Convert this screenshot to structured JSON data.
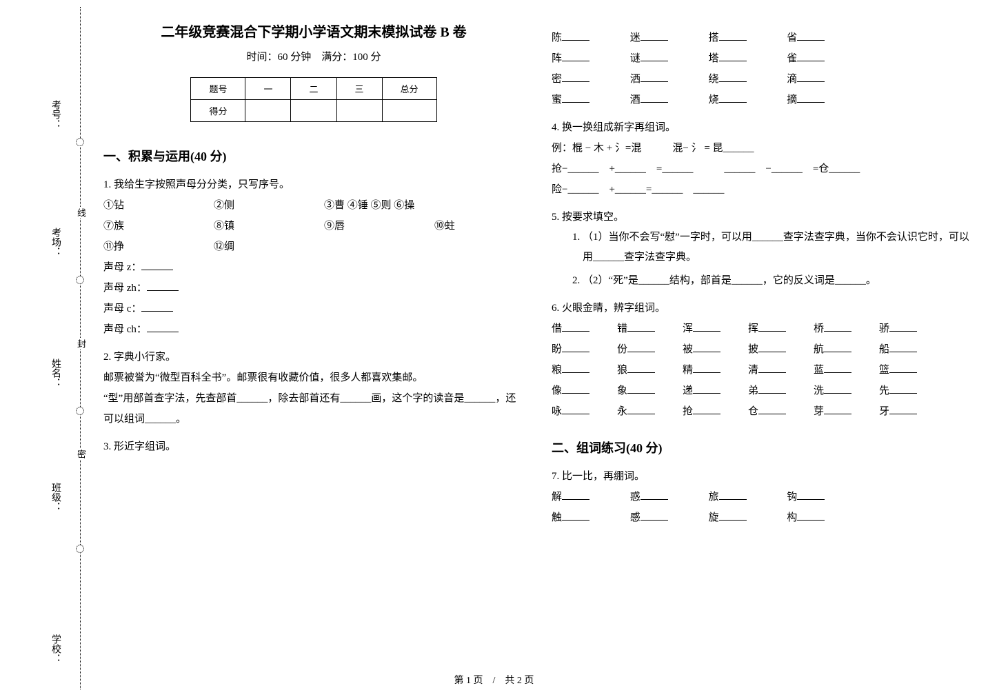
{
  "binding": {
    "labels": [
      "学校：",
      "班级：",
      "姓名：",
      "考场：",
      "考号："
    ],
    "seal_chars": [
      "密",
      "封",
      "线"
    ]
  },
  "header": {
    "title": "二年级竞赛混合下学期小学语文期末模拟试卷 B 卷",
    "subtitle": "时间：60 分钟　满分：100 分"
  },
  "score_table": {
    "cols": [
      "题号",
      "一",
      "二",
      "三",
      "总分"
    ],
    "row2": [
      "得分",
      "",
      "",
      "",
      ""
    ]
  },
  "sec1": {
    "heading": "一、积累与运用(40 分)",
    "q1": {
      "stem": "1. 我给生字按照声母分分类，只写序号。",
      "items": [
        "①钻",
        "②侧",
        "③曹 ④锤 ⑤则 ⑥操",
        "⑦族",
        "⑧镇",
        "⑨唇",
        "⑩蛀",
        "⑪挣",
        "⑫绸"
      ],
      "lines": [
        "声母 z：",
        "声母 zh：",
        "声母 c：",
        "声母 ch："
      ]
    },
    "q2": {
      "stem": "2. 字典小行家。",
      "para": "邮票被誉为“微型百科全书”。邮票很有收藏价值，很多人都喜欢集邮。",
      "line": "“型”用部首查字法，先查部首______，除去部首还有______画，这个字的读音是______，还可以组词______。"
    },
    "q3": {
      "stem": "3. 形近字组词。",
      "rows": [
        [
          "陈",
          "迷",
          "搭",
          "省"
        ],
        [
          "阵",
          "谜",
          "塔",
          "雀"
        ],
        [
          "密",
          "洒",
          "绕",
          "滴"
        ],
        [
          "蜜",
          "酒",
          "烧",
          "摘"
        ]
      ]
    },
    "q4": {
      "stem": "4. 换一换组成新字再组词。",
      "example": "例：棍 − 木 + 氵=混　　　混− 氵 = 昆______",
      "l2": "抢−______　+______　=______　　　______　−______　=仓______",
      "l3": "险−______　+______=______　______"
    },
    "q5": {
      "stem": "5. 按要求填空。",
      "subs": [
        "（1）当你不会写“慰”一字时，可以用______查字法查字典，当你不会认识它时，可以用______查字法查字典。",
        "（2）“死”是______结构，部首是______，它的反义词是______。"
      ]
    },
    "q6": {
      "stem": "6. 火眼金睛，辨字组词。",
      "rows": [
        [
          "借",
          "错",
          "浑",
          "挥",
          "",
          "桥",
          "骄"
        ],
        [
          "盼",
          "份",
          "被",
          "披",
          "航",
          "船",
          ""
        ],
        [
          "粮",
          "狼",
          "精",
          "清",
          "蓝",
          "篮",
          ""
        ],
        [
          "像",
          "象",
          "递",
          "弟",
          "洗",
          "先",
          ""
        ],
        [
          "咏",
          "永",
          "抢",
          "仓",
          "芽",
          "牙",
          ""
        ]
      ]
    }
  },
  "sec2": {
    "heading": "二、组词练习(40 分)",
    "q7": {
      "stem": "7. 比一比，再绷词。",
      "rows": [
        [
          "解",
          "惑",
          "旅",
          "钩"
        ],
        [
          "触",
          "感",
          "旋",
          "构"
        ]
      ]
    }
  },
  "footer": "第 1 页　/　共 2 页"
}
